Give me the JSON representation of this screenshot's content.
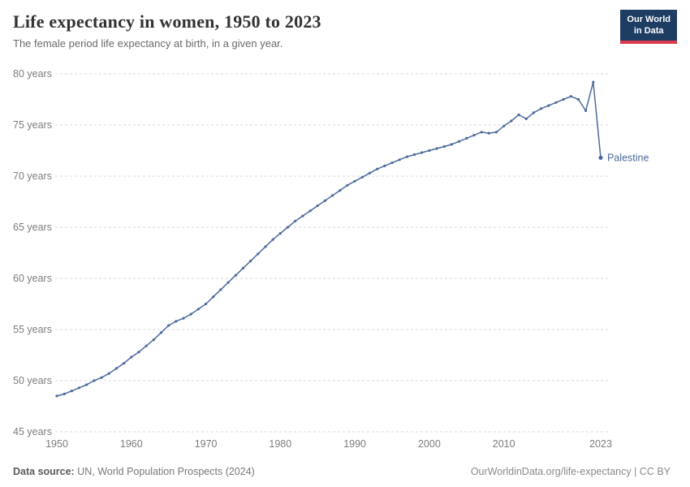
{
  "header": {
    "title": "Life expectancy in women, 1950 to 2023",
    "subtitle": "The female period life expectancy at birth, in a given year.",
    "logo": {
      "line1": "Our World",
      "line2": "in Data",
      "bg_color": "#1d3d63",
      "accent_color": "#d93a4e"
    }
  },
  "footer": {
    "datasource_label": "Data source:",
    "datasource_text": " UN, World Population Prospects (2024)",
    "attribution": "OurWorldinData.org/life-expectancy | CC BY"
  },
  "chart_data": {
    "type": "line",
    "title": "Life expectancy in women, 1950 to 2023",
    "subtitle": "The female period life expectancy at birth, in a given year.",
    "xlabel": "",
    "ylabel": "",
    "xlim": [
      1950,
      2023
    ],
    "ylim": [
      45,
      80
    ],
    "yticks": [
      45,
      50,
      55,
      60,
      65,
      70,
      75,
      80
    ],
    "ytick_format": "{} years",
    "xticks": [
      1950,
      1960,
      1970,
      1980,
      1990,
      2000,
      2010,
      2023
    ],
    "grid": "horizontal-dashed",
    "legend_position": "end-of-line-label",
    "series": [
      {
        "name": "Palestine",
        "color": "#4c6a9c",
        "x": [
          1950,
          1951,
          1952,
          1953,
          1954,
          1955,
          1956,
          1957,
          1958,
          1959,
          1960,
          1961,
          1962,
          1963,
          1964,
          1965,
          1966,
          1967,
          1968,
          1969,
          1970,
          1971,
          1972,
          1973,
          1974,
          1975,
          1976,
          1977,
          1978,
          1979,
          1980,
          1981,
          1982,
          1983,
          1984,
          1985,
          1986,
          1987,
          1988,
          1989,
          1990,
          1991,
          1992,
          1993,
          1994,
          1995,
          1996,
          1997,
          1998,
          1999,
          2000,
          2001,
          2002,
          2003,
          2004,
          2005,
          2006,
          2007,
          2008,
          2009,
          2010,
          2011,
          2012,
          2013,
          2014,
          2015,
          2016,
          2017,
          2018,
          2019,
          2020,
          2021,
          2022,
          2023
        ],
        "values": [
          48.5,
          48.7,
          49.0,
          49.3,
          49.6,
          50.0,
          50.3,
          50.7,
          51.2,
          51.7,
          52.3,
          52.8,
          53.4,
          54.0,
          54.7,
          55.4,
          55.8,
          56.1,
          56.5,
          57.0,
          57.5,
          58.2,
          58.9,
          59.6,
          60.3,
          61.0,
          61.7,
          62.4,
          63.1,
          63.8,
          64.4,
          65.0,
          65.6,
          66.1,
          66.6,
          67.1,
          67.6,
          68.1,
          68.6,
          69.1,
          69.5,
          69.9,
          70.3,
          70.7,
          71.0,
          71.3,
          71.6,
          71.9,
          72.1,
          72.3,
          72.5,
          72.7,
          72.9,
          73.1,
          73.4,
          73.7,
          74.0,
          74.3,
          74.2,
          74.3,
          74.9,
          75.4,
          76.0,
          75.6,
          76.2,
          76.6,
          76.9,
          77.2,
          77.5,
          77.8,
          77.5,
          76.4,
          79.2,
          71.8
        ]
      }
    ]
  }
}
